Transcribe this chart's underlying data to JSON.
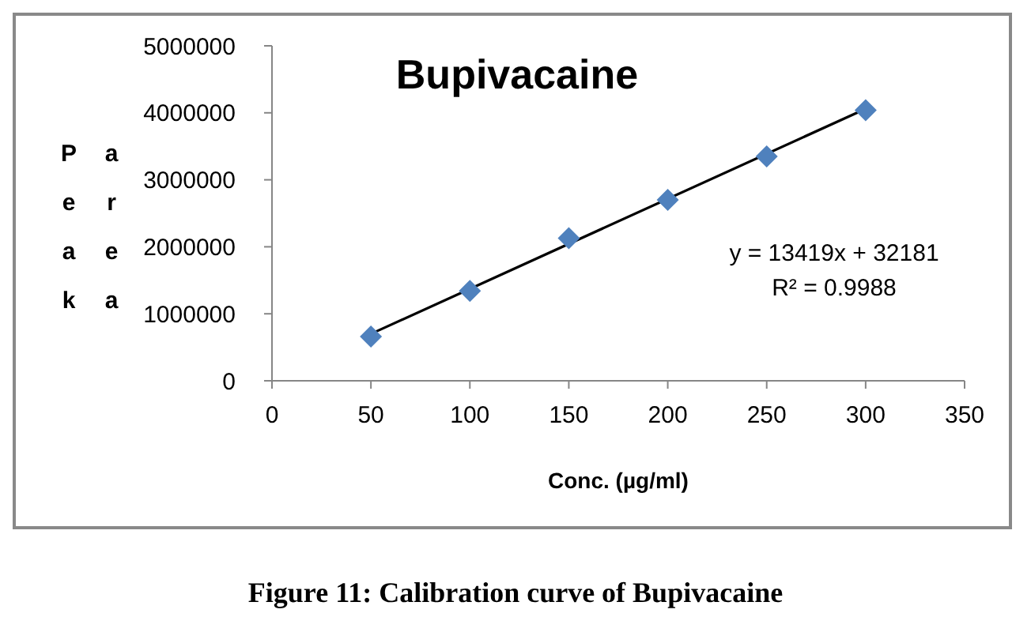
{
  "chart_data": {
    "type": "scatter",
    "title": "Bupivacaine",
    "xlabel": "Conc. (µg/ml)",
    "ylabel": "Peak area",
    "x": [
      50,
      100,
      150,
      200,
      250,
      300
    ],
    "series": [
      {
        "color": "#4f81bd",
        "values": [
          660000,
          1340000,
          2130000,
          2700000,
          3350000,
          4040000
        ]
      },
      {
        "type": "line",
        "color": "#000000",
        "x": [
          50,
          300
        ],
        "values": [
          700000,
          4060000
        ],
        "marker": "none"
      }
    ],
    "xlim": [
      0,
      350
    ],
    "xticks": [
      0,
      50,
      100,
      150,
      200,
      250,
      300,
      350
    ],
    "ylim": [
      0,
      5000000
    ],
    "yticks": [
      0,
      1000000,
      2000000,
      3000000,
      4000000,
      5000000
    ],
    "marker": "diamond",
    "line_style": "solid",
    "grid": false,
    "annotations": [
      "y = 13419x + 32181",
      "R² = 0.9988",
      "Figure 11: Calibration curve of Bupivacaine"
    ]
  }
}
